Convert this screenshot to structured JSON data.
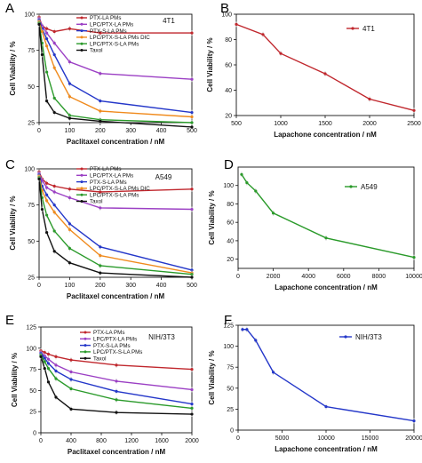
{
  "panels": [
    {
      "letter": "A",
      "inset": "4T1",
      "xlabel": "Paclitaxel concentration / nM",
      "ylabel": "Cell Viability / %",
      "xlim": [
        0,
        500
      ],
      "ylim": [
        25,
        100
      ],
      "xticks": [
        0,
        100,
        200,
        300,
        400,
        500
      ],
      "yticks": [
        25,
        50,
        75,
        100
      ],
      "series": [
        {
          "name": "PTX-LA PMs",
          "color": "#c0272d",
          "x": [
            0,
            10,
            25,
            50,
            100,
            200,
            500
          ],
          "y": [
            98,
            92,
            90,
            88,
            90,
            87,
            87
          ]
        },
        {
          "name": "LPC/PTX-LA PMs",
          "color": "#9b3fc4",
          "x": [
            0,
            10,
            25,
            50,
            100,
            200,
            500
          ],
          "y": [
            97,
            92,
            87,
            80,
            67,
            59,
            55
          ]
        },
        {
          "name": "PTX-S-LA PMs",
          "color": "#2437c9",
          "x": [
            0,
            10,
            25,
            50,
            100,
            200,
            500
          ],
          "y": [
            96,
            90,
            83,
            72,
            52,
            40,
            32
          ]
        },
        {
          "name": "LPC/PTX-S-LA PMs DIC",
          "color": "#f08a1c",
          "x": [
            0,
            10,
            25,
            50,
            100,
            200,
            500
          ],
          "y": [
            95,
            88,
            78,
            63,
            43,
            33,
            29
          ]
        },
        {
          "name": "LPC/PTX-S-LA PMs",
          "color": "#2a9a2a",
          "x": [
            0,
            10,
            25,
            50,
            100,
            200,
            500
          ],
          "y": [
            94,
            80,
            60,
            42,
            30,
            27,
            25
          ]
        },
        {
          "name": "Taxol",
          "color": "#111111",
          "x": [
            0,
            10,
            25,
            50,
            100,
            200,
            500
          ],
          "y": [
            93,
            72,
            40,
            32,
            28,
            26,
            22
          ]
        }
      ]
    },
    {
      "letter": "B",
      "inset": "4T1",
      "xlabel": "Lapachone concentration / nM",
      "ylabel": "Cell Viability / %",
      "xlim": [
        500,
        2500
      ],
      "ylim": [
        20,
        100
      ],
      "xticks": [
        500,
        1000,
        1500,
        2000,
        2500
      ],
      "yticks": [
        20,
        40,
        60,
        80,
        100
      ],
      "legend": [
        "4T1"
      ],
      "series": [
        {
          "name": "4T1",
          "color": "#c0272d",
          "x": [
            500,
            800,
            1000,
            1500,
            2000,
            2500
          ],
          "y": [
            92,
            84,
            69,
            53,
            33,
            24
          ]
        }
      ]
    },
    {
      "letter": "C",
      "inset": "A549",
      "xlabel": "Paclitaxel concentration / nM",
      "ylabel": "Cell Viability / %",
      "xlim": [
        0,
        500
      ],
      "ylim": [
        25,
        100
      ],
      "xticks": [
        0,
        100,
        200,
        300,
        400,
        500
      ],
      "yticks": [
        25,
        50,
        75,
        100
      ],
      "series": [
        {
          "name": "PTX-LA PMs",
          "color": "#c0272d",
          "x": [
            0,
            10,
            25,
            50,
            100,
            200,
            500
          ],
          "y": [
            98,
            93,
            90,
            88,
            86,
            84,
            86
          ]
        },
        {
          "name": "LPC/PTX-LA PMs",
          "color": "#9b3fc4",
          "x": [
            0,
            10,
            25,
            50,
            100,
            200,
            500
          ],
          "y": [
            97,
            92,
            87,
            84,
            80,
            73,
            72
          ]
        },
        {
          "name": "PTX-S-LA PMs",
          "color": "#2437c9",
          "x": [
            0,
            10,
            25,
            50,
            100,
            200,
            500
          ],
          "y": [
            96,
            88,
            82,
            75,
            62,
            46,
            30
          ]
        },
        {
          "name": "LPC/PTX-S-LA PMs DIC",
          "color": "#f08a1c",
          "x": [
            0,
            10,
            25,
            50,
            100,
            200,
            500
          ],
          "y": [
            95,
            85,
            78,
            70,
            58,
            40,
            28
          ]
        },
        {
          "name": "LPC/PTX-S-LA PMs",
          "color": "#2a9a2a",
          "x": [
            0,
            10,
            25,
            50,
            100,
            200,
            500
          ],
          "y": [
            94,
            80,
            68,
            57,
            45,
            33,
            27
          ]
        },
        {
          "name": "Taxol",
          "color": "#111111",
          "x": [
            0,
            10,
            25,
            50,
            100,
            200,
            500
          ],
          "y": [
            93,
            72,
            56,
            43,
            35,
            28,
            25
          ]
        }
      ]
    },
    {
      "letter": "D",
      "inset": "A549",
      "xlabel": "Lapachone concentration / nM",
      "ylabel": "Cell Viability / %",
      "xlim": [
        0,
        10000
      ],
      "ylim": [
        10,
        120
      ],
      "xticks": [
        0,
        2000,
        4000,
        6000,
        8000,
        10000
      ],
      "yticks": [
        20,
        40,
        60,
        80,
        100
      ],
      "legend": [
        "A549"
      ],
      "series": [
        {
          "name": "A549",
          "color": "#2a9a2a",
          "x": [
            200,
            500,
            1000,
            2000,
            5000,
            10000
          ],
          "y": [
            112,
            103,
            94,
            70,
            43,
            22
          ]
        }
      ]
    },
    {
      "letter": "E",
      "inset": "NIH/3T3",
      "xlabel": "Paclitaxel concentration / nM",
      "ylabel": "Cell Viability / %",
      "xlim": [
        0,
        2000
      ],
      "ylim": [
        0,
        125
      ],
      "xticks": [
        0,
        400,
        800,
        1200,
        1600,
        2000
      ],
      "yticks": [
        0,
        25,
        50,
        75,
        100,
        125
      ],
      "series": [
        {
          "name": "PTX-LA PMs",
          "color": "#c0272d",
          "x": [
            0,
            50,
            100,
            200,
            400,
            1000,
            2000
          ],
          "y": [
            97,
            95,
            93,
            90,
            86,
            80,
            75
          ]
        },
        {
          "name": "LPC/PTX-LA PMs",
          "color": "#9b3fc4",
          "x": [
            0,
            50,
            100,
            200,
            400,
            1000,
            2000
          ],
          "y": [
            95,
            91,
            87,
            80,
            72,
            61,
            51
          ]
        },
        {
          "name": "PTX-S-LA PMs",
          "color": "#2437c9",
          "x": [
            0,
            50,
            100,
            200,
            400,
            1000,
            2000
          ],
          "y": [
            94,
            88,
            82,
            73,
            63,
            49,
            34
          ]
        },
        {
          "name": "LPC/PTX-S-LA PMs",
          "color": "#2a9a2a",
          "x": [
            0,
            50,
            100,
            200,
            400,
            1000,
            2000
          ],
          "y": [
            92,
            84,
            76,
            64,
            52,
            39,
            29
          ]
        },
        {
          "name": "Taxol",
          "color": "#111111",
          "x": [
            0,
            50,
            100,
            200,
            400,
            1000,
            2000
          ],
          "y": [
            90,
            76,
            60,
            42,
            28,
            24,
            22
          ]
        }
      ]
    },
    {
      "letter": "F",
      "inset": "NIH/3T3",
      "xlabel": "Lapachone concentration / nM",
      "ylabel": "Cell Viability / %",
      "xlim": [
        0,
        20000
      ],
      "ylim": [
        0,
        125
      ],
      "xticks": [
        0,
        5000,
        10000,
        15000,
        20000
      ],
      "yticks": [
        0,
        25,
        50,
        75,
        100,
        125
      ],
      "legend": [
        "NIH/3T3"
      ],
      "series": [
        {
          "name": "NIH/3T3",
          "color": "#2437c9",
          "x": [
            500,
            1000,
            2000,
            4000,
            10000,
            20000
          ],
          "y": [
            120,
            120,
            107,
            69,
            28,
            11
          ]
        }
      ]
    }
  ]
}
